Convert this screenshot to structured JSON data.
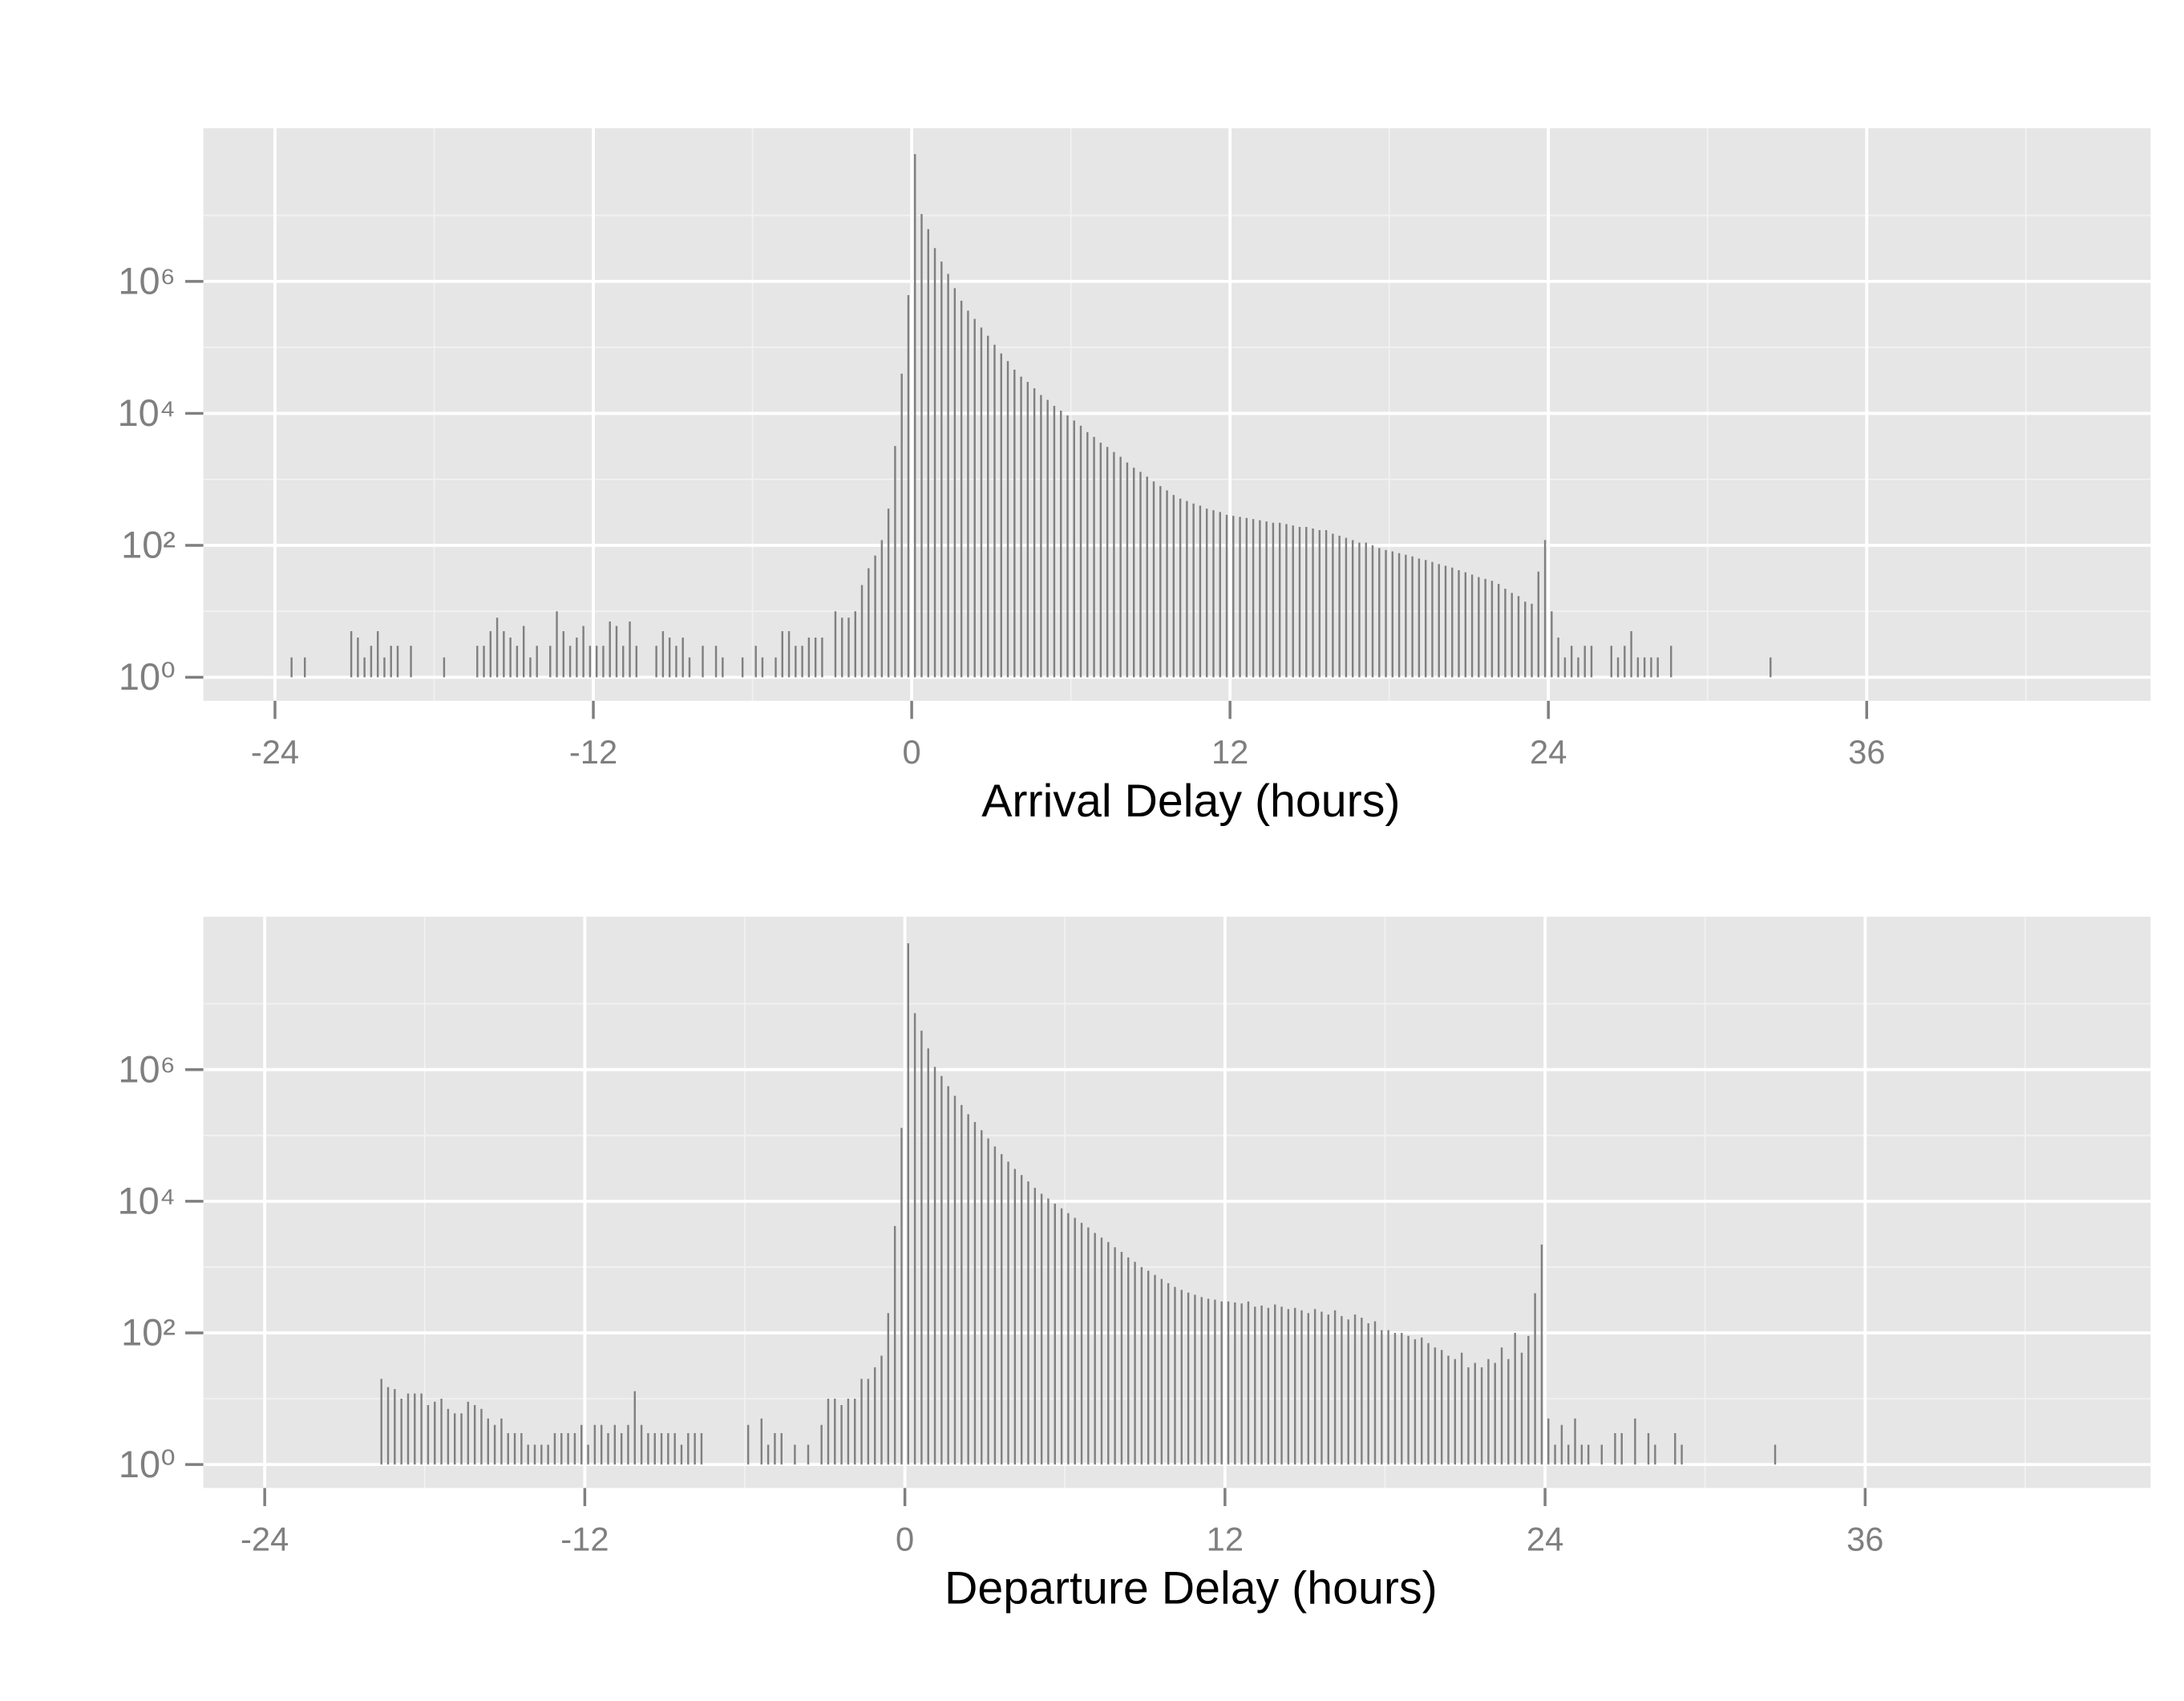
{
  "chart_data": [
    {
      "type": "bar",
      "x_label": "Arrival Delay (hours)",
      "color": "#808080",
      "log_y": true,
      "grid": true,
      "xlim": [
        -26.7,
        46.7
      ],
      "xticks": [
        -24,
        -12,
        0,
        12,
        24,
        36
      ],
      "minor_xticks": [
        -18,
        -6,
        6,
        18,
        30,
        42
      ],
      "ylim": [
        0.44,
        210000000
      ],
      "yticks": [
        {
          "value": 1,
          "label": "10⁰"
        },
        {
          "value": 100,
          "label": "10²"
        },
        {
          "value": 10000,
          "label": "10⁴"
        },
        {
          "value": 1000000,
          "label": "10⁶"
        }
      ],
      "minor_yticks": [
        10,
        1000,
        100000,
        10000000
      ],
      "x": [
        -23.375,
        -22.875,
        -21.125,
        -20.875,
        -20.625,
        -20.375,
        -20.125,
        -19.875,
        -19.625,
        -19.375,
        -18.875,
        -17.625,
        -16.375,
        -16.125,
        -15.875,
        -15.625,
        -15.375,
        -15.125,
        -14.875,
        -14.625,
        -14.375,
        -14.125,
        -13.625,
        -13.375,
        -13.125,
        -12.875,
        -12.625,
        -12.375,
        -12.125,
        -11.875,
        -11.625,
        -11.375,
        -11.125,
        -10.875,
        -10.625,
        -10.375,
        -9.625,
        -9.375,
        -9.125,
        -8.875,
        -8.625,
        -8.375,
        -7.875,
        -7.375,
        -7.125,
        -6.375,
        -5.875,
        -5.625,
        -5.125,
        -4.875,
        -4.625,
        -4.375,
        -4.125,
        -3.875,
        -3.625,
        -3.375,
        -2.875,
        -2.625,
        -2.375,
        -2.125,
        -1.875,
        -1.625,
        -1.375,
        -1.125,
        -0.875,
        -0.625,
        -0.375,
        -0.125,
        0.125,
        0.375,
        0.625,
        0.875,
        1.125,
        1.375,
        1.625,
        1.875,
        2.125,
        2.375,
        2.625,
        2.875,
        3.125,
        3.375,
        3.625,
        3.875,
        4.125,
        4.375,
        4.625,
        4.875,
        5.125,
        5.375,
        5.625,
        5.875,
        6.125,
        6.375,
        6.625,
        6.875,
        7.125,
        7.375,
        7.625,
        7.875,
        8.125,
        8.375,
        8.625,
        8.875,
        9.125,
        9.375,
        9.625,
        9.875,
        10.125,
        10.375,
        10.625,
        10.875,
        11.125,
        11.375,
        11.625,
        11.875,
        12.125,
        12.375,
        12.625,
        12.875,
        13.125,
        13.375,
        13.625,
        13.875,
        14.125,
        14.375,
        14.625,
        14.875,
        15.125,
        15.375,
        15.625,
        15.875,
        16.125,
        16.375,
        16.625,
        16.875,
        17.125,
        17.375,
        17.625,
        17.875,
        18.125,
        18.375,
        18.625,
        18.875,
        19.125,
        19.375,
        19.625,
        19.875,
        20.125,
        20.375,
        20.625,
        20.875,
        21.125,
        21.375,
        21.625,
        21.875,
        22.125,
        22.375,
        22.625,
        22.875,
        23.125,
        23.375,
        23.625,
        23.875,
        24.125,
        24.375,
        24.625,
        24.875,
        25.125,
        25.375,
        25.625,
        26.375,
        26.625,
        26.875,
        27.125,
        27.375,
        27.625,
        27.875,
        28.125,
        28.625,
        32.375
      ],
      "values": [
        2,
        2,
        5,
        4,
        2,
        3,
        5,
        2,
        3,
        3,
        3,
        2,
        3,
        3,
        5,
        8,
        5,
        4,
        3,
        6,
        2,
        3,
        3,
        10,
        5,
        3,
        4,
        6,
        3,
        3,
        3,
        7,
        6,
        3,
        7,
        3,
        3,
        5,
        4,
        3,
        4,
        2,
        3,
        3,
        2,
        2,
        3,
        2,
        2,
        5,
        5,
        3,
        3,
        4,
        4,
        4,
        10,
        8,
        8,
        10,
        25,
        45,
        70,
        120,
        360,
        3200,
        40000,
        620000,
        85000000,
        10500000,
        6200000,
        3200000,
        2000000,
        1300000,
        790000,
        510000,
        360000,
        270000,
        200000,
        150000,
        110000,
        81000,
        62000,
        46000,
        36000,
        30000,
        24000,
        19000,
        16000,
        13000,
        11000,
        9300,
        7800,
        6500,
        5200,
        4400,
        3600,
        3100,
        2600,
        2200,
        1800,
        1500,
        1300,
        1100,
        930,
        790,
        680,
        580,
        510,
        470,
        430,
        400,
        360,
        340,
        320,
        290,
        280,
        270,
        260,
        250,
        240,
        230,
        220,
        220,
        210,
        200,
        190,
        190,
        180,
        170,
        170,
        150,
        140,
        130,
        120,
        110,
        110,
        100,
        91,
        85,
        81,
        76,
        72,
        68,
        63,
        60,
        56,
        52,
        49,
        46,
        42,
        39,
        36,
        33,
        31,
        29,
        26,
        22,
        19,
        17,
        14,
        13,
        40,
        120,
        10,
        4,
        2,
        3,
        2,
        3,
        3,
        3,
        2,
        3,
        5,
        2,
        2,
        2,
        2,
        3,
        2
      ]
    },
    {
      "type": "bar",
      "x_label": "Departure Delay (hours)",
      "color": "#808080",
      "log_y": true,
      "grid": true,
      "xlim": [
        -26.3,
        46.7
      ],
      "xticks": [
        -24,
        -12,
        0,
        12,
        24,
        36
      ],
      "minor_xticks": [
        -18,
        -6,
        6,
        18,
        30,
        42
      ],
      "ylim": [
        0.44,
        210000000
      ],
      "yticks": [
        {
          "value": 1,
          "label": "10⁰"
        },
        {
          "value": 100,
          "label": "10²"
        },
        {
          "value": 10000,
          "label": "10⁴"
        },
        {
          "value": 1000000,
          "label": "10⁶"
        }
      ],
      "minor_yticks": [
        10,
        1000,
        100000,
        10000000
      ],
      "x": [
        -19.625,
        -19.375,
        -19.125,
        -18.875,
        -18.625,
        -18.375,
        -18.125,
        -17.875,
        -17.625,
        -17.375,
        -17.125,
        -16.875,
        -16.625,
        -16.375,
        -16.125,
        -15.875,
        -15.625,
        -15.375,
        -15.125,
        -14.875,
        -14.625,
        -14.375,
        -14.125,
        -13.875,
        -13.625,
        -13.375,
        -13.125,
        -12.875,
        -12.625,
        -12.375,
        -12.125,
        -11.875,
        -11.625,
        -11.375,
        -11.125,
        -10.875,
        -10.625,
        -10.375,
        -10.125,
        -9.875,
        -9.625,
        -9.375,
        -9.125,
        -8.875,
        -8.625,
        -8.375,
        -8.125,
        -7.875,
        -7.625,
        -5.875,
        -5.375,
        -5.125,
        -4.875,
        -4.625,
        -4.125,
        -3.625,
        -3.125,
        -2.875,
        -2.625,
        -2.375,
        -2.125,
        -1.875,
        -1.625,
        -1.375,
        -1.125,
        -0.875,
        -0.625,
        -0.375,
        -0.125,
        0.125,
        0.375,
        0.625,
        0.875,
        1.125,
        1.375,
        1.625,
        1.875,
        2.125,
        2.375,
        2.625,
        2.875,
        3.125,
        3.375,
        3.625,
        3.875,
        4.125,
        4.375,
        4.625,
        4.875,
        5.125,
        5.375,
        5.625,
        5.875,
        6.125,
        6.375,
        6.625,
        6.875,
        7.125,
        7.375,
        7.625,
        7.875,
        8.125,
        8.375,
        8.625,
        8.875,
        9.125,
        9.375,
        9.625,
        9.875,
        10.125,
        10.375,
        10.625,
        10.875,
        11.125,
        11.375,
        11.625,
        11.875,
        12.125,
        12.375,
        12.625,
        12.875,
        13.125,
        13.375,
        13.625,
        13.875,
        14.125,
        14.375,
        14.625,
        14.875,
        15.125,
        15.375,
        15.625,
        15.875,
        16.125,
        16.375,
        16.625,
        16.875,
        17.125,
        17.375,
        17.625,
        17.875,
        18.125,
        18.375,
        18.625,
        18.875,
        19.125,
        19.375,
        19.625,
        19.875,
        20.125,
        20.375,
        20.625,
        20.875,
        21.125,
        21.375,
        21.625,
        21.875,
        22.125,
        22.375,
        22.625,
        22.875,
        23.125,
        23.375,
        23.625,
        23.875,
        24.125,
        24.375,
        24.625,
        24.875,
        25.125,
        25.375,
        25.625,
        26.125,
        26.625,
        26.875,
        27.375,
        27.875,
        28.125,
        28.875,
        29.125,
        32.625
      ],
      "values": [
        20,
        15,
        14,
        10,
        12,
        12,
        12,
        8,
        9,
        10,
        7,
        6,
        6,
        9,
        8,
        7,
        5,
        4,
        5,
        3,
        3,
        3,
        2,
        2,
        2,
        2,
        3,
        3,
        3,
        3,
        4,
        2,
        4,
        4,
        3,
        4,
        3,
        4,
        13,
        4,
        3,
        3,
        3,
        3,
        3,
        2,
        3,
        3,
        3,
        4,
        5,
        2,
        3,
        3,
        2,
        2,
        4,
        10,
        10,
        8,
        10,
        10,
        20,
        20,
        30,
        45,
        200,
        4200,
        130000,
        83000000,
        7200000,
        3900000,
        2100000,
        1100000,
        800000,
        560000,
        400000,
        290000,
        210000,
        160000,
        120000,
        90000,
        68000,
        52000,
        40000,
        31000,
        25000,
        20000,
        16000,
        13000,
        11000,
        9200,
        7800,
        6600,
        5600,
        4700,
        4000,
        3300,
        2800,
        2400,
        2000,
        1700,
        1400,
        1200,
        1000,
        880,
        760,
        660,
        570,
        500,
        450,
        410,
        380,
        350,
        330,
        320,
        300,
        300,
        290,
        280,
        300,
        250,
        260,
        240,
        270,
        250,
        230,
        240,
        220,
        200,
        230,
        210,
        190,
        220,
        180,
        160,
        190,
        170,
        140,
        150,
        110,
        110,
        100,
        100,
        90,
        80,
        85,
        70,
        60,
        55,
        45,
        40,
        50,
        30,
        35,
        30,
        40,
        35,
        60,
        40,
        100,
        50,
        90,
        400,
        2200,
        5,
        2,
        4,
        2,
        5,
        2,
        2,
        2,
        3,
        3,
        5,
        3,
        2,
        3,
        2,
        2
      ]
    }
  ]
}
